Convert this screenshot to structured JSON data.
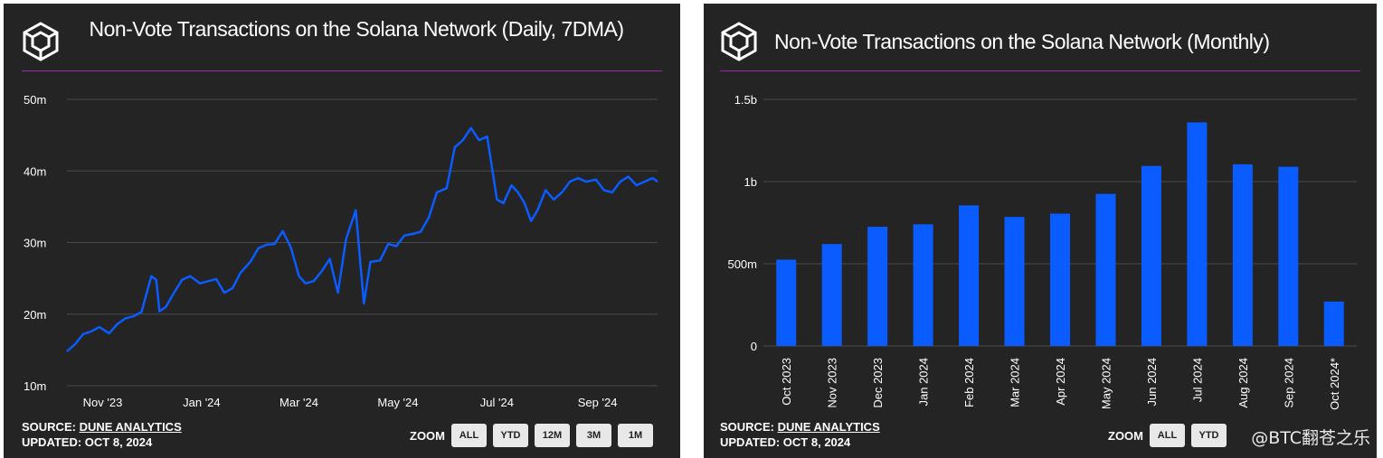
{
  "colors": {
    "panel_bg": "#242424",
    "accent": "#9c27b0",
    "series": "#0a5cff",
    "grid": "#4a4a4a",
    "text": "#ffffff"
  },
  "icons": {
    "logo": "hexagon-cube-icon"
  },
  "left": {
    "title": "Non-Vote Transactions on the Solana Network (Daily, 7DMA)",
    "source_label": "SOURCE:",
    "source_name": "DUNE ANALYTICS",
    "updated": "UPDATED: OCT 8, 2024",
    "zoom_label": "ZOOM",
    "zoom_buttons": [
      "ALL",
      "YTD",
      "12M",
      "3M",
      "1M"
    ]
  },
  "right": {
    "title": "Non-Vote Transactions on the Solana Network (Monthly)",
    "source_label": "SOURCE:",
    "source_name": "DUNE ANALYTICS",
    "updated": "UPDATED: OCT 8, 2024",
    "zoom_label": "ZOOM",
    "zoom_buttons": [
      "ALL",
      "YTD"
    ]
  },
  "watermark": "@BTC翻苍之乐",
  "chart_data": [
    {
      "type": "line",
      "title": "Non-Vote Transactions on the Solana Network (Daily, 7DMA)",
      "xlabel": "",
      "ylabel": "",
      "ylim": [
        10,
        50
      ],
      "yticks": [
        10,
        20,
        30,
        40,
        50
      ],
      "ytick_labels": [
        "10m",
        "20m",
        "30m",
        "40m",
        "50m"
      ],
      "xlim": [
        "2023-10-10",
        "2024-10-08"
      ],
      "xticks": [
        "2023-11-01",
        "2024-01-01",
        "2024-03-01",
        "2024-05-01",
        "2024-07-01",
        "2024-09-01"
      ],
      "xtick_labels": [
        "Nov '23",
        "Jan '24",
        "Mar '24",
        "May '24",
        "Jul '24",
        "Sep '24"
      ],
      "grid": true,
      "series": [
        {
          "x": [
            "2023-10-10",
            "2023-10-15",
            "2023-10-20",
            "2023-10-25",
            "2023-10-30",
            "2023-11-05",
            "2023-11-10",
            "2023-11-15",
            "2023-11-20",
            "2023-11-25",
            "2023-12-01",
            "2023-12-04",
            "2023-12-06",
            "2023-12-10",
            "2023-12-15",
            "2023-12-20",
            "2023-12-25",
            "2023-12-31",
            "2024-01-05",
            "2024-01-10",
            "2024-01-15",
            "2024-01-20",
            "2024-01-25",
            "2024-01-31",
            "2024-02-05",
            "2024-02-10",
            "2024-02-15",
            "2024-02-20",
            "2024-02-25",
            "2024-03-01",
            "2024-03-05",
            "2024-03-10",
            "2024-03-15",
            "2024-03-20",
            "2024-03-25",
            "2024-03-30",
            "2024-04-05",
            "2024-04-10",
            "2024-04-14",
            "2024-04-20",
            "2024-04-25",
            "2024-04-30",
            "2024-05-05",
            "2024-05-10",
            "2024-05-15",
            "2024-05-20",
            "2024-05-25",
            "2024-05-31",
            "2024-06-05",
            "2024-06-10",
            "2024-06-15",
            "2024-06-20",
            "2024-06-25",
            "2024-07-01",
            "2024-07-05",
            "2024-07-10",
            "2024-07-14",
            "2024-07-18",
            "2024-07-22",
            "2024-07-26",
            "2024-07-31",
            "2024-08-05",
            "2024-08-10",
            "2024-08-15",
            "2024-08-20",
            "2024-08-25",
            "2024-08-31",
            "2024-09-05",
            "2024-09-10",
            "2024-09-15",
            "2024-09-20",
            "2024-09-25",
            "2024-09-30",
            "2024-10-05",
            "2024-10-08"
          ],
          "values": [
            14.8,
            15.8,
            17.2,
            17.6,
            18.2,
            17.3,
            18.6,
            19.4,
            19.7,
            20.3,
            25.3,
            24.8,
            20.4,
            21.0,
            23.0,
            24.8,
            25.3,
            24.3,
            24.6,
            24.9,
            23.0,
            23.6,
            25.8,
            27.3,
            29.2,
            29.7,
            29.8,
            31.6,
            29.3,
            25.3,
            24.3,
            24.6,
            26.0,
            27.7,
            23.0,
            30.5,
            34.5,
            21.5,
            27.3,
            27.5,
            29.8,
            29.5,
            31.0,
            31.2,
            31.5,
            33.5,
            37.0,
            37.6,
            43.3,
            44.3,
            46.0,
            44.3,
            44.8,
            36.0,
            35.5,
            38.0,
            37.0,
            35.5,
            33.0,
            34.5,
            37.3,
            36.0,
            37.0,
            38.5,
            39.0,
            38.5,
            38.8,
            37.3,
            37.0,
            38.5,
            39.2,
            38.0,
            38.5,
            39.0,
            38.5
          ]
        }
      ]
    },
    {
      "type": "bar",
      "title": "Non-Vote Transactions on the Solana Network (Monthly)",
      "xlabel": "",
      "ylabel": "",
      "ylim": [
        0,
        1500
      ],
      "yticks": [
        0,
        500,
        1000,
        1500
      ],
      "ytick_labels": [
        "0",
        "500m",
        "1b",
        "1.5b"
      ],
      "grid": true,
      "categories": [
        "Oct 2023",
        "Nov 2023",
        "Dec 2023",
        "Jan 2024",
        "Feb 2024",
        "Mar 2024",
        "Apr 2024",
        "May 2024",
        "Jun 2024",
        "Jul 2024",
        "Aug 2024",
        "Sep 2024",
        "Oct 2024*"
      ],
      "values": [
        525,
        620,
        725,
        740,
        855,
        785,
        805,
        925,
        1095,
        1360,
        1105,
        1090,
        270
      ]
    }
  ]
}
